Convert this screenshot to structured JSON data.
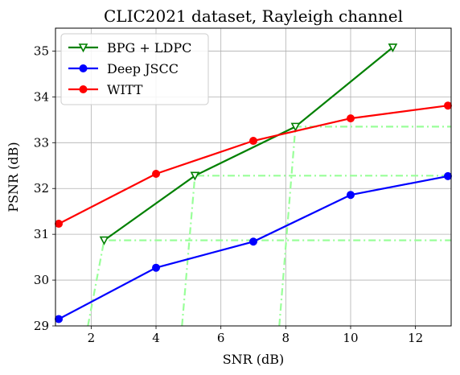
{
  "chart_data": {
    "type": "line",
    "title": "CLIC2021 dataset, Rayleigh channel",
    "xlabel": "SNR (dB)",
    "ylabel": "PSNR (dB)",
    "xlim": [
      0.9,
      13.1
    ],
    "ylim": [
      29,
      35.5
    ],
    "xticks": [
      2,
      4,
      6,
      8,
      10,
      12
    ],
    "yticks": [
      29,
      30,
      31,
      32,
      33,
      34,
      35
    ],
    "grid": true,
    "legend_position": "top-left",
    "series": [
      {
        "name": "BPG + LDPC",
        "color": "#008000",
        "marker": "triangle-down",
        "x": [
          2.4,
          5.2,
          8.3,
          11.3
        ],
        "y": [
          30.87,
          32.28,
          33.35,
          35.08
        ]
      },
      {
        "name": "Deep JSCC",
        "color": "#0000ff",
        "marker": "circle",
        "x": [
          1,
          4,
          7,
          10,
          13
        ],
        "y": [
          29.15,
          30.27,
          30.84,
          31.86,
          32.27
        ]
      },
      {
        "name": "WITT",
        "color": "#ff0000",
        "marker": "circle",
        "x": [
          1,
          4,
          7,
          10,
          13
        ],
        "y": [
          31.23,
          32.32,
          33.04,
          33.53,
          33.81
        ]
      }
    ],
    "reference_lines": {
      "color": "#99ff99",
      "style": "dash-dot",
      "lines": [
        {
          "x": [
            1.9,
            2.4,
            13.1
          ],
          "y": [
            29,
            30.87,
            30.87
          ]
        },
        {
          "x": [
            4.8,
            5.2,
            13.1
          ],
          "y": [
            29,
            32.28,
            32.28
          ]
        },
        {
          "x": [
            7.8,
            8.3,
            13.1
          ],
          "y": [
            29,
            33.35,
            33.35
          ]
        }
      ]
    }
  }
}
